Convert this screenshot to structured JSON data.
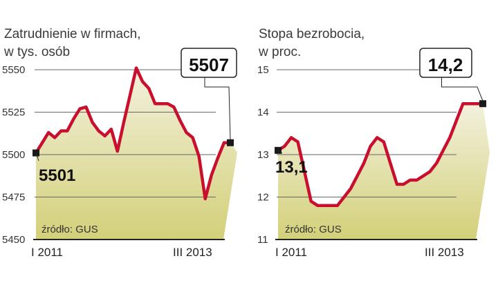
{
  "chart_data": [
    {
      "type": "area",
      "title": "Zatrudnienie w firmach,",
      "subtitle": "w tys. osób",
      "source": "źródło: GUS",
      "x_labels": [
        "I 2011",
        "III 2013"
      ],
      "ylim": [
        5450,
        5550
      ],
      "y_ticks": [
        "5550",
        "5525",
        "5500",
        "5475",
        "5450"
      ],
      "start_label": "5501",
      "end_label": "5507",
      "x": [
        0,
        1,
        2,
        3,
        4,
        5,
        6,
        7,
        8,
        9,
        10,
        11,
        12,
        13,
        14,
        15,
        16,
        17,
        18,
        19,
        20,
        21,
        22,
        23,
        24,
        25,
        26,
        27,
        28,
        29,
        30,
        31
      ],
      "values": [
        5501,
        5507,
        5513,
        5510,
        5514,
        5514,
        5521,
        5527,
        5528,
        5519,
        5514,
        5511,
        5515,
        5502,
        5519,
        5535,
        5551,
        5543,
        5539,
        5530,
        5530,
        5530,
        5528,
        5520,
        5513,
        5510,
        5499,
        5474,
        5488,
        5498,
        5507,
        5507
      ]
    },
    {
      "type": "area",
      "title": "Stopa bezrobocia,",
      "subtitle": "w proc.",
      "source": "źródło: GUS",
      "x_labels": [
        "I 2011",
        "III 2013"
      ],
      "ylim": [
        11,
        15
      ],
      "y_ticks": [
        "15",
        "14",
        "13",
        "12",
        "11"
      ],
      "start_label": "13,1",
      "end_label": "14,2",
      "x": [
        0,
        1,
        2,
        3,
        4,
        5,
        6,
        7,
        8,
        9,
        10,
        11,
        12,
        13,
        14,
        15,
        16,
        17,
        18,
        19,
        20,
        21,
        22,
        23,
        24,
        25,
        26,
        27,
        28,
        29,
        30,
        31
      ],
      "values": [
        13.1,
        13.2,
        13.4,
        13.3,
        12.6,
        11.9,
        11.8,
        11.8,
        11.8,
        11.8,
        12.0,
        12.2,
        12.5,
        12.8,
        13.2,
        13.4,
        13.3,
        12.8,
        12.3,
        12.3,
        12.4,
        12.4,
        12.5,
        12.6,
        12.8,
        13.1,
        13.4,
        13.8,
        14.2,
        14.2,
        14.2,
        14.2
      ]
    }
  ],
  "colors": {
    "line": "#c8102e",
    "area_top": "#f3f1dd",
    "area_bottom": "#d3d07a",
    "grid": "#666666",
    "marker": "#1a1a1a"
  }
}
